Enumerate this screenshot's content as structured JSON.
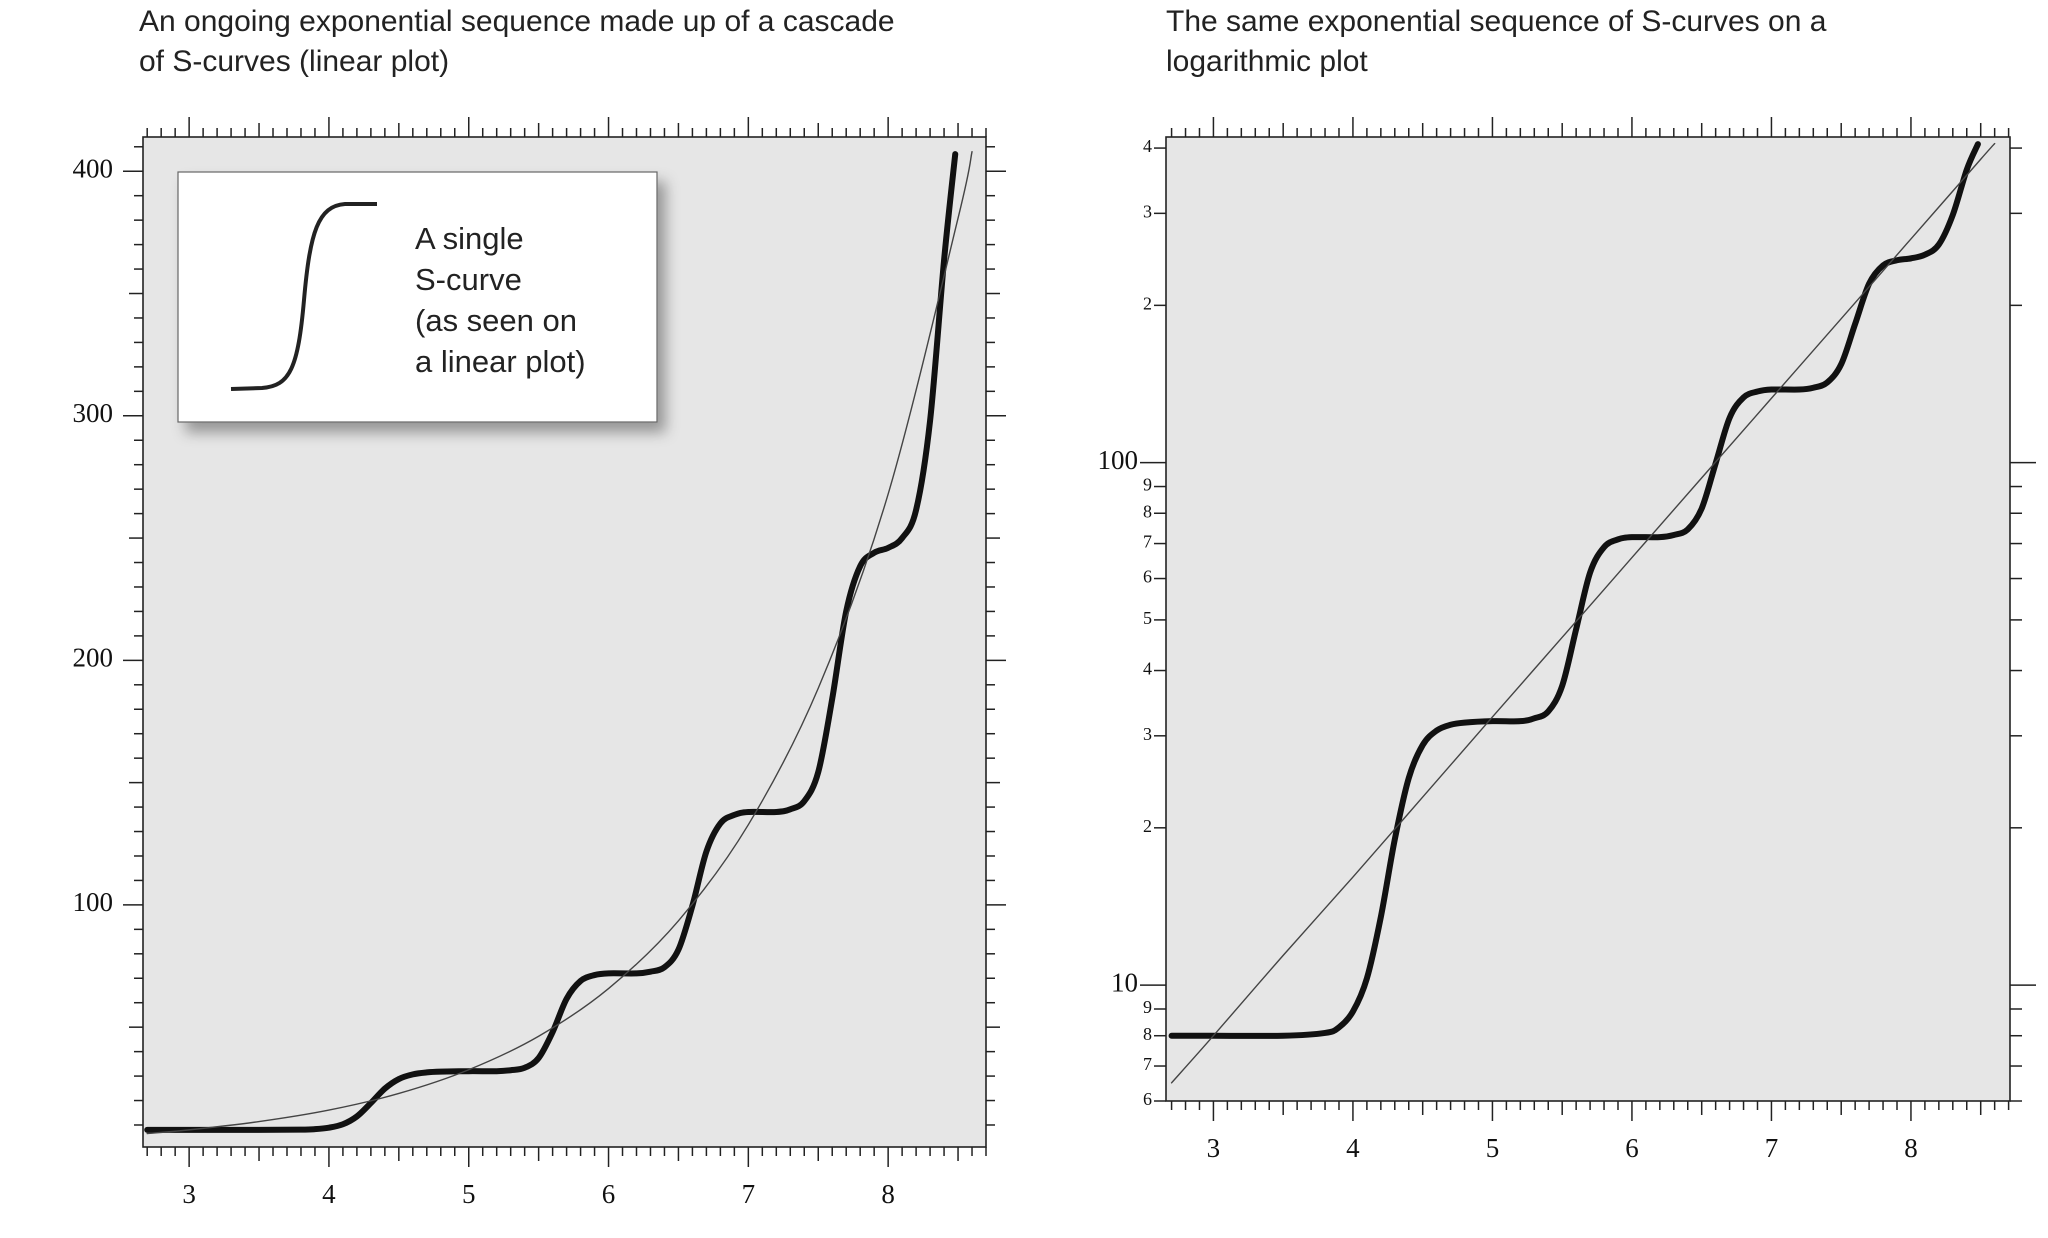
{
  "chart_data": [
    {
      "type": "line",
      "title": "An ongoing exponential sequence made up of a cascade of S-curves (linear plot)",
      "annotation": [
        "A single",
        "S-curve",
        "(as seen on",
        "a linear plot)"
      ],
      "xlim": [
        2.67,
        8.7
      ],
      "ylim": [
        1,
        414
      ],
      "xticks": [
        3,
        4,
        5,
        6,
        7,
        8
      ],
      "yticks": [
        100,
        200,
        300,
        400
      ],
      "x_minor_divisions": 10,
      "y_minor_divisions": 10,
      "log_y": false,
      "series": [
        {
          "color": "#111111",
          "x": [
            2.7,
            3.0,
            3.5,
            3.8,
            3.9,
            4.0,
            4.1,
            4.2,
            4.3,
            4.4,
            4.5,
            4.6,
            4.7,
            4.8,
            5.0,
            5.2,
            5.3,
            5.4,
            5.5,
            5.6,
            5.7,
            5.8,
            5.9,
            6.0,
            6.2,
            6.3,
            6.4,
            6.5,
            6.6,
            6.7,
            6.8,
            6.9,
            7.0,
            7.2,
            7.3,
            7.4,
            7.5,
            7.6,
            7.7,
            7.8,
            7.9,
            8.0,
            8.1,
            8.2,
            8.3,
            8.4,
            8.48
          ],
          "values": [
            8,
            8,
            8,
            8.1,
            8.3,
            8.9,
            10.3,
            13.5,
            19,
            24.9,
            28.8,
            30.7,
            31.5,
            31.8,
            32,
            32,
            32.4,
            33.4,
            37.4,
            48,
            61.6,
            68.9,
            71.3,
            72,
            72,
            72.7,
            74.5,
            81.7,
            99.7,
            121.8,
            133.3,
            136.8,
            138,
            138,
            139.1,
            142.4,
            154.3,
            184.3,
            220,
            238.5,
            244,
            246,
            250,
            261.5,
            298,
            363.6,
            407
          ]
        },
        {
          "color": "#444444",
          "x": [
            2.7,
            3.0,
            3.5,
            4.0,
            4.5,
            5.0,
            5.5,
            6.0,
            6.5,
            7.0,
            7.5,
            8.0,
            8.5,
            8.6
          ],
          "values": [
            6.5,
            8,
            11.4,
            16.1,
            22.9,
            32.6,
            46.3,
            65.8,
            93.5,
            132.8,
            188.6,
            268,
            380.8,
            408
          ]
        }
      ]
    },
    {
      "type": "line",
      "title": "The same exponential sequence of S-curves on a logarithmic plot",
      "xlim": [
        2.66,
        8.71
      ],
      "ylim": [
        6,
        420
      ],
      "xticks": [
        3,
        4,
        5,
        6,
        7,
        8
      ],
      "yticks": [
        6,
        7,
        8,
        9,
        10,
        {
          "value": 20,
          "label": "2"
        },
        {
          "value": 30,
          "label": "3"
        },
        {
          "value": 40,
          "label": "4"
        },
        {
          "value": 50,
          "label": "5"
        },
        {
          "value": 60,
          "label": "6"
        },
        {
          "value": 70,
          "label": "7"
        },
        {
          "value": 80,
          "label": "8"
        },
        {
          "value": 90,
          "label": "9"
        },
        100,
        {
          "value": 200,
          "label": "2"
        },
        {
          "value": 300,
          "label": "3"
        },
        {
          "value": 400,
          "label": "4"
        }
      ],
      "x_minor_divisions": 10,
      "log_y": true,
      "series": [
        {
          "color": "#111111",
          "x": [
            2.7,
            3.0,
            3.5,
            3.8,
            3.9,
            4.0,
            4.1,
            4.2,
            4.3,
            4.4,
            4.5,
            4.6,
            4.7,
            4.8,
            5.0,
            5.2,
            5.3,
            5.4,
            5.5,
            5.6,
            5.7,
            5.8,
            5.9,
            6.0,
            6.2,
            6.3,
            6.4,
            6.5,
            6.6,
            6.7,
            6.8,
            6.9,
            7.0,
            7.2,
            7.3,
            7.4,
            7.5,
            7.6,
            7.7,
            7.8,
            7.9,
            8.0,
            8.1,
            8.2,
            8.3,
            8.4,
            8.48
          ],
          "values": [
            8,
            8,
            8,
            8.1,
            8.3,
            8.9,
            10.3,
            13.5,
            19,
            24.9,
            28.8,
            30.7,
            31.5,
            31.8,
            32,
            32,
            32.4,
            33.4,
            37.4,
            48,
            61.6,
            68.9,
            71.3,
            72,
            72,
            72.7,
            74.5,
            81.7,
            99.7,
            121.8,
            133.3,
            136.8,
            138,
            138,
            139.1,
            142.4,
            154.3,
            184.3,
            220,
            238.5,
            244,
            246,
            250,
            261.5,
            298,
            363.6,
            407
          ]
        },
        {
          "color": "#444444",
          "x": [
            2.7,
            3.0,
            3.5,
            4.0,
            4.5,
            5.0,
            5.5,
            6.0,
            6.5,
            7.0,
            7.5,
            8.0,
            8.5,
            8.6
          ],
          "values": [
            6.5,
            8,
            11.4,
            16.1,
            22.9,
            32.6,
            46.3,
            65.8,
            93.5,
            132.8,
            188.6,
            268,
            380.8,
            408
          ]
        }
      ]
    }
  ]
}
